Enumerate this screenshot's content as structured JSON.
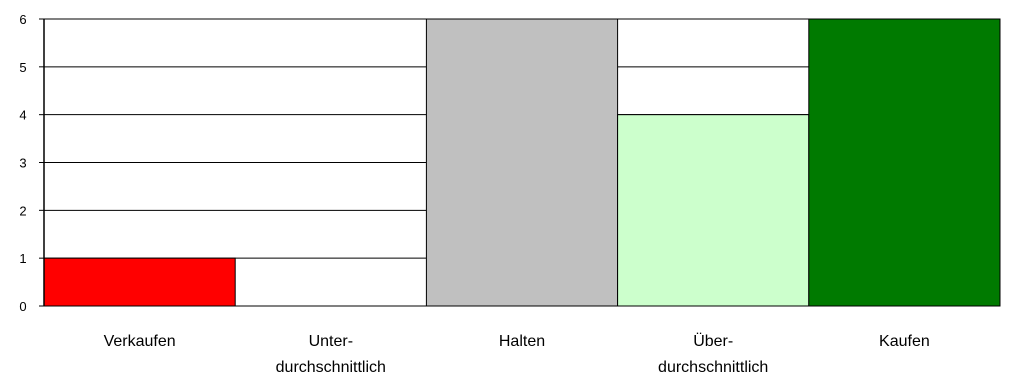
{
  "chart_data": {
    "type": "bar",
    "categories": [
      [
        "Verkaufen"
      ],
      [
        "Unter-",
        "durchschnittlich"
      ],
      [
        "Halten"
      ],
      [
        "Über-",
        "durchschnittlich"
      ],
      [
        "Kaufen"
      ]
    ],
    "values": [
      1,
      0,
      6,
      4,
      6
    ],
    "colors": [
      "#ff0000",
      "#ffffff",
      "#c0c0c0",
      "#ccffcc",
      "#007a00"
    ],
    "ylim": [
      0,
      6
    ],
    "yticks": [
      0,
      1,
      2,
      3,
      4,
      5,
      6
    ],
    "grid": true,
    "title": "",
    "xlabel": "",
    "ylabel": ""
  }
}
